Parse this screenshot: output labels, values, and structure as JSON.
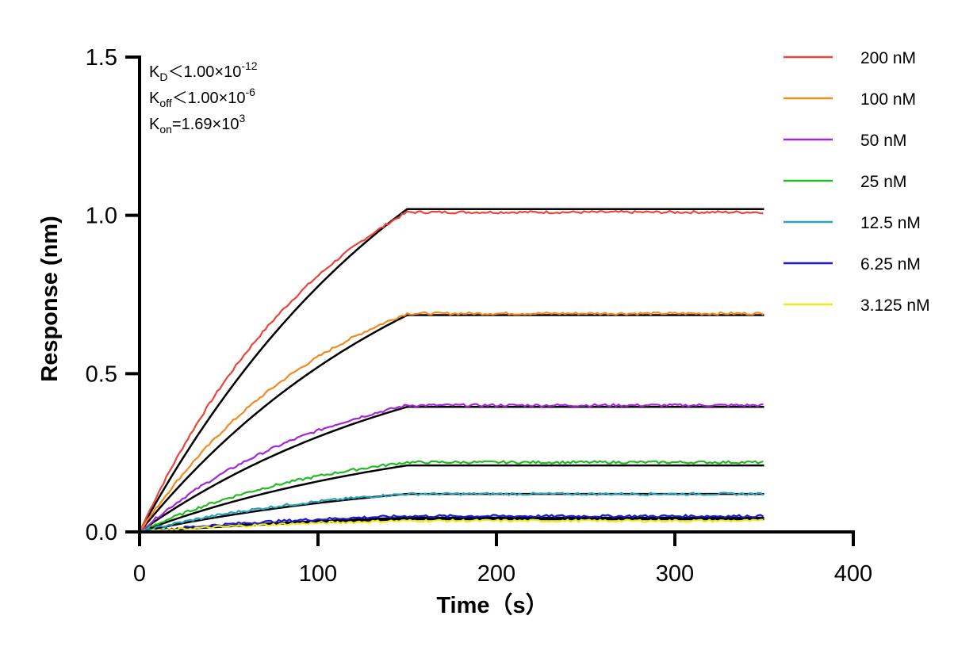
{
  "chart_data": {
    "type": "line",
    "xlabel": "Time（s）",
    "ylabel": "Response (nm)",
    "xlim": [
      0,
      400
    ],
    "ylim": [
      0,
      1.5
    ],
    "xticks": [
      "0",
      "100",
      "200",
      "300",
      "400"
    ],
    "yticks": [
      "0.0",
      "0.5",
      "1.0",
      "1.5"
    ],
    "legend_position": "right",
    "association_end_s": 150,
    "end_s": 350,
    "annotations": {
      "kd": {
        "base": "K",
        "sub": "D",
        "rel": "＜",
        "value": "1.00×10",
        "exp": "-12"
      },
      "koff": {
        "base": "K",
        "sub": "off",
        "rel": "＜",
        "value": "1.00×10",
        "exp": "-6"
      },
      "kon": {
        "base": "K",
        "sub": "on",
        "rel": "=",
        "value": "1.69×10",
        "exp": "3"
      }
    },
    "series": [
      {
        "name": "200 nM",
        "color": "#e8463c",
        "plateau": 1.01
      },
      {
        "name": "100 nM",
        "color": "#f28a1e",
        "plateau": 0.69
      },
      {
        "name": "50 nM",
        "color": "#a526d6",
        "plateau": 0.4
      },
      {
        "name": "25 nM",
        "color": "#22bb22",
        "plateau": 0.22
      },
      {
        "name": "12.5 nM",
        "color": "#2aa3b8",
        "plateau": 0.12
      },
      {
        "name": "6.25 nM",
        "color": "#1a1adc",
        "plateau": 0.05
      },
      {
        "name": "3.125 nM",
        "color": "#f2ea1a",
        "plateau": 0.035
      }
    ],
    "fit_color": "#000000",
    "fit_plateaus": [
      1.02,
      0.685,
      0.395,
      0.21,
      0.12,
      0.045,
      0.04
    ]
  }
}
